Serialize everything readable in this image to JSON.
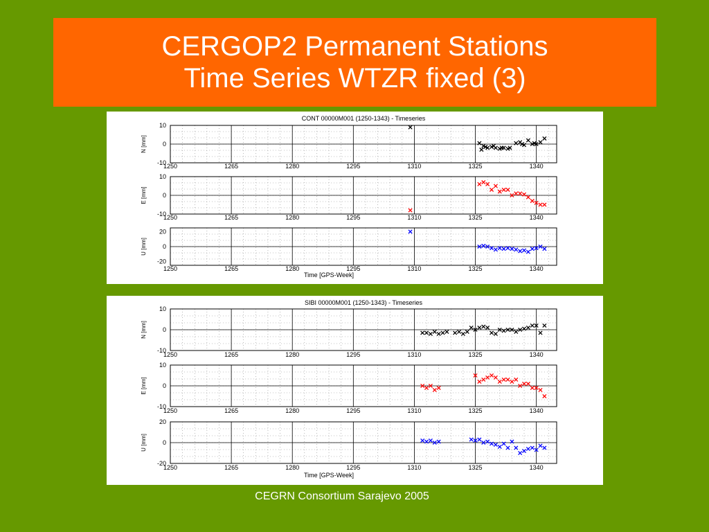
{
  "slide": {
    "title_line1": "CERGOP2 Permanent Stations",
    "title_line2": "Time Series WTZR fixed (3)",
    "footer": "CEGRN Consortium Sarajevo 2005"
  },
  "colors": {
    "background": "#669900",
    "title_bar": "#ff6600",
    "series_N": "#000000",
    "series_E": "#ff0000",
    "series_U": "#0000ff"
  },
  "chart_data": [
    {
      "type": "scatter",
      "title": "CONT 00000M001 (1250-1343) - Timeseries",
      "xlabel": "Time [GPS-Week]",
      "xlim": [
        1250,
        1345
      ],
      "xticks": [
        "1250",
        "1265",
        "1280",
        "1295",
        "1310",
        "1325",
        "1340"
      ],
      "grid": true,
      "panels": [
        {
          "ylabel": "N [mm]",
          "ylim": [
            -10,
            10
          ],
          "yticks": [
            "10",
            "0",
            "-10"
          ],
          "color": "#000000",
          "x": [
            1309,
            1326,
            1326.5,
            1327,
            1327.5,
            1328,
            1329,
            1329.5,
            1330,
            1331,
            1331.5,
            1332,
            1333,
            1333.5,
            1335,
            1336,
            1336.5,
            1337,
            1338,
            1339,
            1339.5,
            1340,
            1341,
            1342
          ],
          "y": [
            9,
            0.5,
            -3,
            -1,
            -1.5,
            -2,
            -1.5,
            -1,
            -2,
            -2.5,
            -2,
            -2,
            -2.5,
            -2,
            0.5,
            1,
            0,
            -0.5,
            2,
            0,
            0.5,
            0,
            1,
            3
          ]
        },
        {
          "ylabel": "E [mm]",
          "ylim": [
            -10,
            10
          ],
          "yticks": [
            "10",
            "0",
            "-10"
          ],
          "color": "#ff0000",
          "x": [
            1309,
            1326,
            1327,
            1328,
            1329,
            1330,
            1331,
            1332,
            1333,
            1334,
            1335,
            1336,
            1337,
            1338,
            1339,
            1340,
            1341,
            1342
          ],
          "y": [
            -8,
            6,
            7,
            6,
            3,
            5,
            2,
            3,
            3,
            0,
            1,
            1,
            0.5,
            -1,
            -3,
            -4,
            -5,
            -5
          ]
        },
        {
          "ylabel": "U [mm]",
          "ylim": [
            -25,
            25
          ],
          "yticks": [
            "20",
            "0",
            "-20"
          ],
          "color": "#0000ff",
          "x": [
            1309,
            1326,
            1327,
            1328,
            1329,
            1330,
            1331,
            1332,
            1333,
            1334,
            1335,
            1336,
            1337,
            1338,
            1339,
            1340,
            1341,
            1342
          ],
          "y": [
            20,
            0,
            1,
            0,
            -2,
            -4,
            -2,
            -3,
            -2,
            -3,
            -4,
            -6,
            -5,
            -7,
            -3,
            -2,
            0,
            -3
          ]
        }
      ]
    },
    {
      "type": "scatter",
      "title": "SIBI 00000M001 (1250-1343) - Timeseries",
      "xlabel": "Time [GPS-Week]",
      "xlim": [
        1250,
        1345
      ],
      "xticks": [
        "1250",
        "1265",
        "1280",
        "1295",
        "1310",
        "1325",
        "1340"
      ],
      "grid": true,
      "panels": [
        {
          "ylabel": "N [mm]",
          "ylim": [
            -10,
            10
          ],
          "yticks": [
            "10",
            "0",
            "-10"
          ],
          "color": "#000000",
          "x": [
            1312,
            1313,
            1314,
            1315,
            1316,
            1317,
            1318,
            1320,
            1321,
            1322,
            1323,
            1324,
            1325,
            1326,
            1327,
            1328,
            1329,
            1330,
            1331,
            1332,
            1333,
            1334,
            1335,
            1336,
            1337,
            1338,
            1339,
            1340,
            1341,
            1342
          ],
          "y": [
            -1.5,
            -1.5,
            -2,
            -1,
            -2,
            -1.5,
            -1,
            -1.5,
            -1,
            -2,
            -1,
            1,
            0,
            1,
            1.5,
            1,
            -1.5,
            -2,
            0,
            -0.5,
            0,
            0,
            -1,
            0,
            0.5,
            1,
            2,
            2,
            -1.5,
            2
          ]
        },
        {
          "ylabel": "E [mm]",
          "ylim": [
            -10,
            10
          ],
          "yticks": [
            "10",
            "0",
            "-10"
          ],
          "color": "#ff0000",
          "x": [
            1312,
            1313,
            1314,
            1315,
            1316,
            1325,
            1326,
            1327,
            1328,
            1329,
            1330,
            1331,
            1332,
            1333,
            1334,
            1335,
            1336,
            1337,
            1338,
            1339,
            1340,
            1341,
            1342
          ],
          "y": [
            0,
            -1,
            0,
            -2,
            -1,
            5,
            2,
            3,
            4,
            5,
            4,
            2,
            3,
            3,
            2,
            3,
            0,
            1,
            1,
            -1,
            -1,
            -2,
            -5
          ]
        },
        {
          "ylabel": "U [mm]",
          "ylim": [
            -20,
            20
          ],
          "yticks": [
            "20",
            "0",
            "-20"
          ],
          "color": "#0000ff",
          "x": [
            1312,
            1313,
            1314,
            1315,
            1316,
            1324,
            1325,
            1326,
            1327,
            1328,
            1329,
            1330,
            1331,
            1332,
            1333,
            1334,
            1335,
            1336,
            1337,
            1338,
            1339,
            1340,
            1341,
            1342
          ],
          "y": [
            2,
            1,
            2,
            0,
            1,
            3,
            2,
            3,
            0,
            1,
            -1,
            -2,
            -4,
            -1,
            -5,
            1,
            -5,
            -10,
            -8,
            -6,
            -5,
            -7,
            -3,
            -5
          ]
        }
      ]
    }
  ]
}
